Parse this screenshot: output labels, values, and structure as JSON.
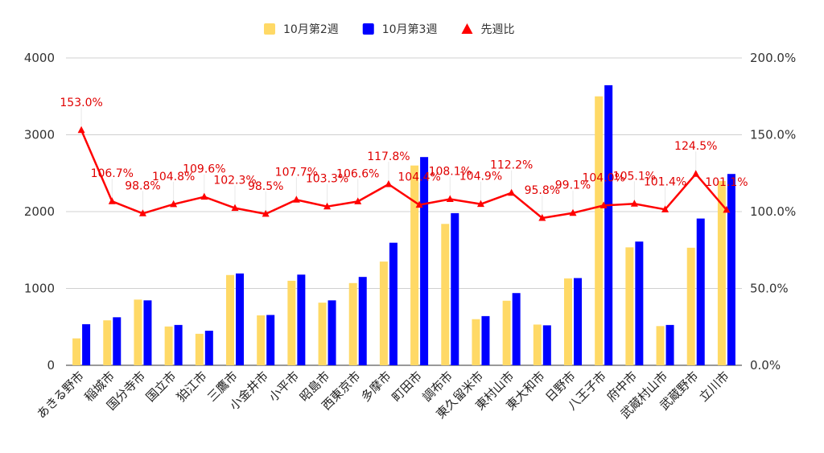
{
  "chart_data": {
    "type": "bar",
    "categories": [
      "あきる野市",
      "稲城市",
      "国分寺市",
      "国立市",
      "狛江市",
      "三鷹市",
      "小金井市",
      "小平市",
      "昭島市",
      "西東京市",
      "多摩市",
      "町田市",
      "調布市",
      "東久留米市",
      "東村山市",
      "東大和市",
      "日野市",
      "八王子市",
      "府中市",
      "武蔵村山市",
      "武蔵野市",
      "立川市"
    ],
    "series": [
      {
        "name": "10月第2週",
        "axis": "left",
        "type": "bar",
        "color": "#FFD966",
        "values": [
          350,
          585,
          855,
          505,
          410,
          1175,
          650,
          1100,
          815,
          1070,
          1350,
          2600,
          1840,
          600,
          840,
          530,
          1130,
          3500,
          1535,
          510,
          1530,
          2400
        ]
      },
      {
        "name": "10月第3週",
        "axis": "left",
        "type": "bar",
        "color": "#0000FF",
        "values": [
          535,
          625,
          845,
          525,
          450,
          1195,
          655,
          1180,
          845,
          1150,
          1595,
          2710,
          1980,
          640,
          940,
          520,
          1135,
          3645,
          1610,
          525,
          1910,
          2490
        ]
      },
      {
        "name": "先週比",
        "axis": "right",
        "type": "line",
        "color": "#FF0000",
        "values": [
          153.0,
          106.7,
          98.8,
          104.8,
          109.6,
          102.3,
          98.5,
          107.7,
          103.3,
          106.6,
          117.8,
          104.4,
          108.1,
          104.9,
          112.2,
          95.8,
          99.1,
          104.0,
          105.1,
          101.4,
          124.5,
          101.1
        ],
        "labels": [
          "153.0%",
          "106.7%",
          "98.8%",
          "104.8%",
          "109.6%",
          "102.3%",
          "98.5%",
          "107.7%",
          "103.3%",
          "106.6%",
          "117.8%",
          "104.4%",
          "108.1%",
          "104.9%",
          "112.2%",
          "95.8%",
          "99.1%",
          "104.0%",
          "105.1%",
          "101.4%",
          "124.5%",
          "101.1%"
        ]
      }
    ],
    "y_left": {
      "min": 0,
      "max": 4000,
      "ticks": [
        "0",
        "1000",
        "2000",
        "3000",
        "4000"
      ],
      "tick_values": [
        0,
        1000,
        2000,
        3000,
        4000
      ]
    },
    "y_right": {
      "min": 0,
      "max": 200,
      "ticks": [
        "0.0%",
        "50.0%",
        "100.0%",
        "150.0%",
        "200.0%"
      ],
      "tick_values": [
        0,
        50,
        100,
        150,
        200
      ]
    },
    "grid": true,
    "legend_position": "top-center",
    "legend": [
      {
        "label": "10月第2週",
        "marker": "square",
        "color": "#FFD966"
      },
      {
        "label": "10月第3週",
        "marker": "square",
        "color": "#0000FF"
      },
      {
        "label": "先週比",
        "marker": "triangle",
        "color": "#FF0000"
      }
    ]
  }
}
